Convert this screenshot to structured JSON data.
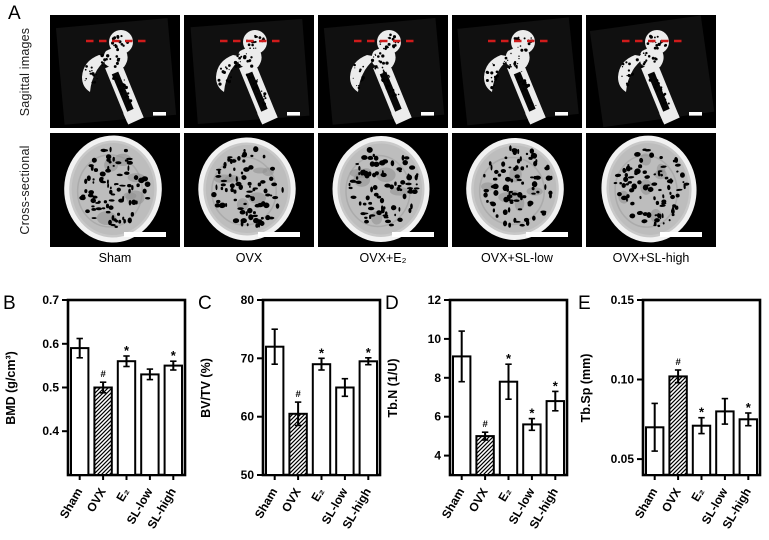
{
  "panelA": {
    "label": "A",
    "row_labels": [
      "Sagittal images",
      "Cross-sectional"
    ],
    "columns": [
      "Sham",
      "OVX",
      "OVX+E₂",
      "OVX+SL-low",
      "OVX+SL-high"
    ],
    "dashed_line_color": "#cf1b1b",
    "scale_bar_color": "#ffffff"
  },
  "chart_data": [
    {
      "panel_label": "B",
      "type": "bar",
      "categories": [
        "Sham",
        "OVX",
        "E₂",
        "SL-low",
        "SL-high"
      ],
      "values": [
        0.59,
        0.5,
        0.56,
        0.53,
        0.55
      ],
      "errors": [
        0.022,
        0.012,
        0.012,
        0.012,
        0.01
      ],
      "significance": [
        "",
        "#",
        "*",
        "",
        "*"
      ],
      "bar_fill": [
        "open",
        "hatched",
        "open",
        "open",
        "open"
      ],
      "ylabel": "BMD (g/cm³)",
      "ylim": [
        0.3,
        0.7
      ],
      "ytick_values": [
        0.4,
        0.5,
        0.6,
        0.7
      ],
      "ytick_labels": [
        "0.4",
        "0.5",
        "0.6",
        "0.7"
      ]
    },
    {
      "panel_label": "C",
      "type": "bar",
      "categories": [
        "Sham",
        "OVX",
        "E₂",
        "SL-low",
        "SL-high"
      ],
      "values": [
        72,
        60.5,
        69,
        65,
        69.5
      ],
      "errors": [
        3,
        2,
        1,
        1.5,
        0.6
      ],
      "significance": [
        "",
        "#",
        "*",
        "",
        "*"
      ],
      "bar_fill": [
        "open",
        "hatched",
        "open",
        "open",
        "open"
      ],
      "ylabel": "BV/TV (%)",
      "ylim": [
        50,
        80
      ],
      "ytick_values": [
        50,
        60,
        70,
        80
      ],
      "ytick_labels": [
        "50",
        "60",
        "70",
        "80"
      ]
    },
    {
      "panel_label": "D",
      "type": "bar",
      "categories": [
        "Sham",
        "OVX",
        "E₂",
        "SL-low",
        "SL-high"
      ],
      "values": [
        9.1,
        5.0,
        7.8,
        5.6,
        6.8
      ],
      "errors": [
        1.3,
        0.2,
        0.9,
        0.3,
        0.5
      ],
      "significance": [
        "",
        "#",
        "*",
        "*",
        "*"
      ],
      "bar_fill": [
        "open",
        "hatched",
        "open",
        "open",
        "open"
      ],
      "ylabel": "Tb.N (1/U)",
      "ylim": [
        3,
        12
      ],
      "ytick_values": [
        4,
        6,
        8,
        10,
        12
      ],
      "ytick_labels": [
        "4",
        "6",
        "8",
        "10",
        "12"
      ]
    },
    {
      "panel_label": "E",
      "type": "bar",
      "categories": [
        "Sham",
        "OVX",
        "E₂",
        "SL-low",
        "SL-high"
      ],
      "values": [
        0.07,
        0.102,
        0.071,
        0.08,
        0.075
      ],
      "errors": [
        0.015,
        0.004,
        0.005,
        0.008,
        0.004
      ],
      "significance": [
        "",
        "#",
        "*",
        "",
        "*"
      ],
      "bar_fill": [
        "open",
        "hatched",
        "open",
        "open",
        "open"
      ],
      "ylabel": "Tb.Sp (mm)",
      "ylim": [
        0.04,
        0.15
      ],
      "ytick_values": [
        0.05,
        0.1,
        0.15
      ],
      "ytick_labels": [
        "0.05",
        "0.10",
        "0.15"
      ]
    }
  ],
  "style": {
    "bar_color": "#ffffff",
    "bar_stroke": "#000000",
    "error_color": "#000000",
    "axis_color": "#000000"
  }
}
